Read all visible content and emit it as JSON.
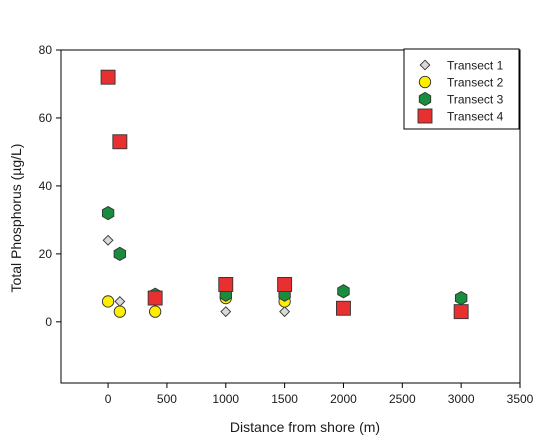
{
  "chart_data": {
    "type": "scatter",
    "title": "",
    "xlabel": "Distance from shore (m)",
    "ylabel": "Total Phosphorus (µg/L)",
    "xlim": [
      -400,
      3500
    ],
    "ylim": [
      -18,
      80
    ],
    "xticks": [
      0,
      500,
      1000,
      1500,
      2000,
      2500,
      3000,
      3500
    ],
    "yticks": [
      0,
      20,
      40,
      60,
      80
    ],
    "grid": false,
    "legend_position": "top-right",
    "series": [
      {
        "name": "Transect 1",
        "marker": "diamond",
        "color": "#d9d9d9",
        "points": [
          [
            0,
            24
          ],
          [
            100,
            6
          ],
          [
            400,
            8
          ],
          [
            1000,
            3
          ],
          [
            1500,
            3
          ]
        ]
      },
      {
        "name": "Transect 2",
        "marker": "circle",
        "color": "#ffee00",
        "points": [
          [
            0,
            6
          ],
          [
            100,
            3
          ],
          [
            400,
            3
          ],
          [
            1000,
            7
          ],
          [
            1500,
            6
          ]
        ]
      },
      {
        "name": "Transect 3",
        "marker": "hexagon",
        "color": "#1a8c3e",
        "points": [
          [
            0,
            32
          ],
          [
            100,
            20
          ],
          [
            400,
            8
          ],
          [
            1000,
            8
          ],
          [
            1500,
            8
          ],
          [
            2000,
            9
          ],
          [
            3000,
            7
          ]
        ]
      },
      {
        "name": "Transect 4",
        "marker": "square",
        "color": "#e83030",
        "points": [
          [
            0,
            72
          ],
          [
            100,
            53
          ],
          [
            400,
            7
          ],
          [
            1000,
            11
          ],
          [
            1500,
            11
          ],
          [
            2000,
            4
          ],
          [
            3000,
            3
          ]
        ]
      }
    ]
  }
}
